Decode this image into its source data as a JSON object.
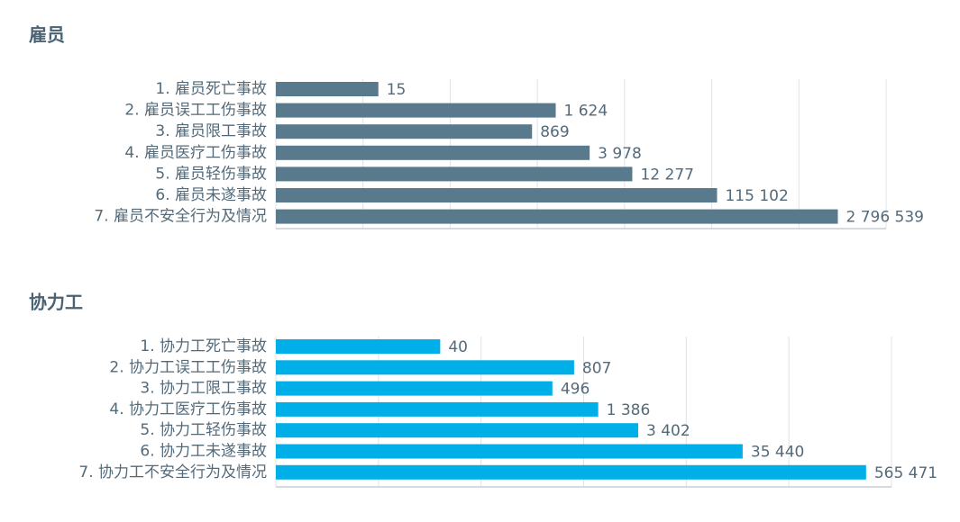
{
  "chart_data": [
    {
      "type": "hbar",
      "title": "雇员",
      "log": true,
      "grid": true,
      "color": "#587a8c",
      "categories": [
        "1. 雇员死亡事故",
        "2. 雇员误工工伤事故",
        "3. 雇员限工事故",
        "4. 雇员医疗工伤事故",
        "5. 雇员轻伤事故",
        "6. 雇员未遂事故",
        "7. 雇员不安全行为及情况"
      ],
      "values": [
        15,
        1624,
        869,
        3978,
        12277,
        115102,
        2796539
      ],
      "value_labels": [
        "15",
        "1 624",
        "869",
        "3 978",
        "12 277",
        "115 102",
        "2 796 539"
      ],
      "xlim": [
        1,
        10000000
      ],
      "xticks": [
        1,
        10,
        100,
        1000,
        10000,
        100000,
        1000000,
        10000000
      ]
    },
    {
      "type": "hbar",
      "title": "协力工",
      "log": true,
      "grid": true,
      "color": "#00aee8",
      "categories": [
        "1. 协力工死亡事故",
        "2. 协力工误工工伤事故",
        "3. 协力工限工事故",
        "4. 协力工医疗工伤事故",
        "5. 协力工轻伤事故",
        "6. 协力工未遂事故",
        "7. 协力工不安全行为及情况"
      ],
      "values": [
        40,
        807,
        496,
        1386,
        3402,
        35440,
        565471
      ],
      "value_labels": [
        "40",
        "807",
        "496",
        "1 386",
        "3 402",
        "35 440",
        "565 471"
      ],
      "xlim": [
        1,
        1000000
      ],
      "xticks": [
        1,
        10,
        100,
        1000,
        10000,
        100000,
        1000000
      ]
    }
  ]
}
